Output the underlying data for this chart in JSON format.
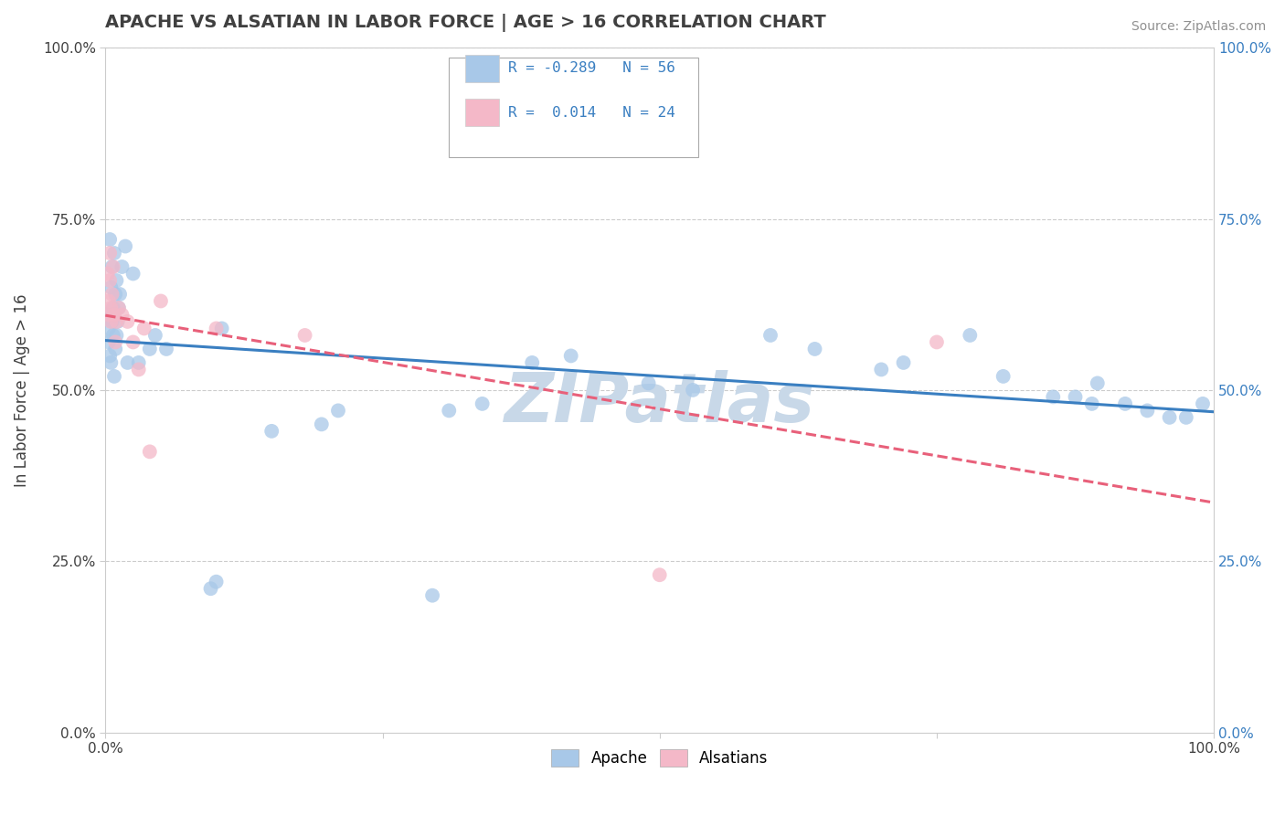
{
  "title": "APACHE VS ALSATIAN IN LABOR FORCE | AGE > 16 CORRELATION CHART",
  "source_text": "Source: ZipAtlas.com",
  "ylabel": "In Labor Force | Age > 16",
  "watermark": "ZIPatlas",
  "apache_x": [
    0.002,
    0.003,
    0.003,
    0.004,
    0.004,
    0.005,
    0.005,
    0.006,
    0.006,
    0.007,
    0.007,
    0.008,
    0.008,
    0.009,
    0.009,
    0.01,
    0.01,
    0.011,
    0.012,
    0.013,
    0.015,
    0.018,
    0.02,
    0.025,
    0.03,
    0.04,
    0.045,
    0.055,
    0.095,
    0.1,
    0.105,
    0.15,
    0.195,
    0.21,
    0.295,
    0.31,
    0.34,
    0.385,
    0.42,
    0.49,
    0.53,
    0.6,
    0.64,
    0.7,
    0.72,
    0.78,
    0.81,
    0.855,
    0.875,
    0.89,
    0.895,
    0.92,
    0.94,
    0.96,
    0.975,
    0.99
  ],
  "apache_y": [
    0.61,
    0.59,
    0.57,
    0.55,
    0.72,
    0.65,
    0.54,
    0.68,
    0.6,
    0.62,
    0.58,
    0.7,
    0.52,
    0.64,
    0.56,
    0.66,
    0.58,
    0.6,
    0.62,
    0.64,
    0.68,
    0.71,
    0.54,
    0.67,
    0.54,
    0.56,
    0.58,
    0.56,
    0.21,
    0.22,
    0.59,
    0.44,
    0.45,
    0.47,
    0.2,
    0.47,
    0.48,
    0.54,
    0.55,
    0.51,
    0.5,
    0.58,
    0.56,
    0.53,
    0.54,
    0.58,
    0.52,
    0.49,
    0.49,
    0.48,
    0.51,
    0.48,
    0.47,
    0.46,
    0.46,
    0.48
  ],
  "alsatian_x": [
    0.002,
    0.003,
    0.003,
    0.004,
    0.004,
    0.005,
    0.005,
    0.006,
    0.007,
    0.008,
    0.009,
    0.01,
    0.012,
    0.015,
    0.02,
    0.025,
    0.03,
    0.035,
    0.04,
    0.05,
    0.1,
    0.18,
    0.5,
    0.75
  ],
  "alsatian_y": [
    0.67,
    0.63,
    0.61,
    0.66,
    0.7,
    0.6,
    0.62,
    0.64,
    0.68,
    0.61,
    0.57,
    0.6,
    0.62,
    0.61,
    0.6,
    0.57,
    0.53,
    0.59,
    0.41,
    0.63,
    0.59,
    0.58,
    0.23,
    0.57
  ],
  "xlim": [
    0.0,
    1.0
  ],
  "ylim": [
    0.0,
    1.0
  ],
  "apache_color": "#a8c8e8",
  "alsatian_color": "#f4b8c8",
  "apache_line_color": "#3a7fc1",
  "alsatian_line_color": "#e8607a",
  "bg_color": "#ffffff",
  "grid_color": "#cccccc",
  "title_color": "#404040",
  "axis_label_color": "#404040",
  "tick_color": "#404040",
  "right_tick_color": "#3a7fc1",
  "source_color": "#909090",
  "watermark_color": "#c8d8e8",
  "legend_text_color": "#3a7fc1",
  "r_vals": [
    "-0.289",
    " 0.014"
  ],
  "n_vals": [
    "56",
    "24"
  ]
}
